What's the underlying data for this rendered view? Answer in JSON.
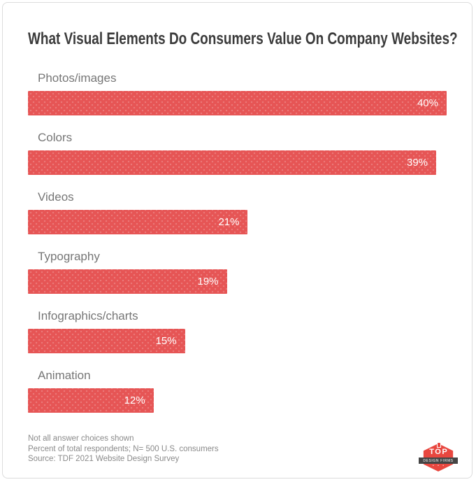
{
  "title": "What Visual Elements Do Consumers Value On Company Websites?",
  "chart_data": {
    "type": "bar",
    "orientation": "horizontal",
    "title": "What Visual Elements Do Consumers Value On Company Websites?",
    "categories": [
      "Photos/images",
      "Colors",
      "Videos",
      "Typography",
      "Infographics/charts",
      "Animation"
    ],
    "values": [
      40,
      39,
      21,
      19,
      15,
      12
    ],
    "value_labels": [
      "40%",
      "39%",
      "21%",
      "19%",
      "15%",
      "12%"
    ],
    "xlabel": "",
    "ylabel": "",
    "xlim": [
      0,
      40
    ],
    "grid": false,
    "legend": false,
    "bar_color": "#e65555",
    "value_label_color": "#ffffff",
    "category_label_color": "#767676"
  },
  "footer": {
    "lines": [
      "Not all answer choices shown",
      "Percent of total respondents; N= 500 U.S. consumers",
      "Source: TDF 2021 Website Design Survey"
    ]
  },
  "logo": {
    "primary_text": "TOP",
    "secondary_text": "DESIGN FIRMS",
    "badge_color": "#e8473f",
    "ribbon_color": "#454545"
  },
  "colors": {
    "card_border": "#dcdcdc",
    "title_text": "#3b3b3b",
    "footer_text": "#8a8a8a",
    "background": "#ffffff"
  }
}
